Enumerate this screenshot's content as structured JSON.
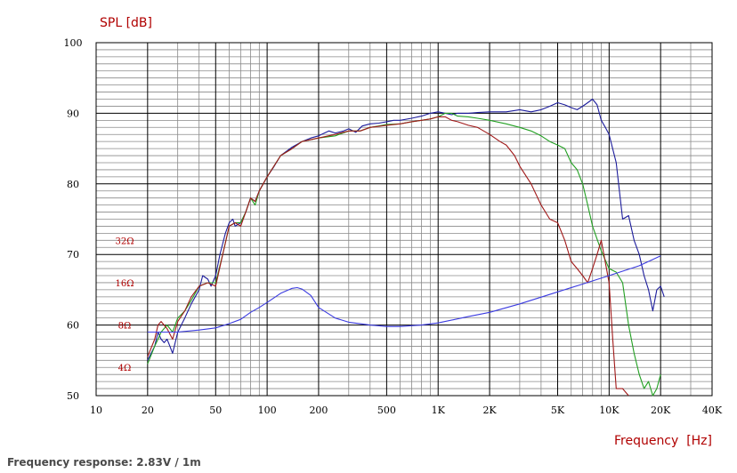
{
  "caption": "Frequency response: 2.83V / 1m",
  "chart_data": {
    "type": "line",
    "xscale": "log",
    "ylabel": "SPL [dB]",
    "xlabel": "Frequency  [Hz]",
    "xlim": [
      10,
      40000
    ],
    "ylim": [
      50,
      100
    ],
    "x_tick_values": [
      10,
      20,
      50,
      100,
      200,
      500,
      1000,
      2000,
      5000,
      10000,
      20000,
      40000
    ],
    "x_tick_labels": [
      "10",
      "20",
      "50",
      "100",
      "200",
      "500",
      "1K",
      "2K",
      "5K",
      "10K",
      "20K",
      "40K"
    ],
    "y_tick_values": [
      50,
      60,
      70,
      80,
      90,
      100
    ],
    "y_tick_labels": [
      "50",
      "60",
      "70",
      "80",
      "90",
      "100"
    ],
    "impedance_markers": [
      {
        "label": "32Ω",
        "y": 72
      },
      {
        "label": "16Ω",
        "y": 66
      },
      {
        "label": "8Ω",
        "y": 60
      },
      {
        "label": "4Ω",
        "y": 54
      }
    ],
    "grid": true,
    "series": [
      {
        "color": "#1c1c9c",
        "points": [
          [
            20,
            55
          ],
          [
            22,
            57
          ],
          [
            23,
            59
          ],
          [
            24,
            58
          ],
          [
            25,
            57.5
          ],
          [
            26,
            58
          ],
          [
            27,
            57
          ],
          [
            28,
            56
          ],
          [
            30,
            59
          ],
          [
            33,
            61
          ],
          [
            36,
            63
          ],
          [
            40,
            65
          ],
          [
            42,
            67
          ],
          [
            45,
            66.5
          ],
          [
            47,
            65.5
          ],
          [
            50,
            67
          ],
          [
            53,
            70
          ],
          [
            57,
            73
          ],
          [
            60,
            74.5
          ],
          [
            63,
            75
          ],
          [
            65,
            74
          ],
          [
            70,
            74.5
          ],
          [
            75,
            76
          ],
          [
            80,
            78
          ],
          [
            85,
            77.5
          ],
          [
            90,
            79
          ],
          [
            100,
            81
          ],
          [
            110,
            82.5
          ],
          [
            120,
            84
          ],
          [
            140,
            85.2
          ],
          [
            160,
            86
          ],
          [
            180,
            86.5
          ],
          [
            200,
            86.8
          ],
          [
            230,
            87.5
          ],
          [
            250,
            87.2
          ],
          [
            280,
            87.5
          ],
          [
            300,
            87.8
          ],
          [
            330,
            87.3
          ],
          [
            360,
            88.2
          ],
          [
            400,
            88.5
          ],
          [
            450,
            88.6
          ],
          [
            500,
            88.8
          ],
          [
            550,
            89
          ],
          [
            600,
            89
          ],
          [
            700,
            89.3
          ],
          [
            800,
            89.6
          ],
          [
            900,
            90
          ],
          [
            1000,
            90.2
          ],
          [
            1100,
            90
          ],
          [
            1200,
            89.8
          ],
          [
            1300,
            90
          ],
          [
            1500,
            90
          ],
          [
            1700,
            90.1
          ],
          [
            2000,
            90.2
          ],
          [
            2500,
            90.2
          ],
          [
            3000,
            90.5
          ],
          [
            3500,
            90.2
          ],
          [
            4000,
            90.5
          ],
          [
            4500,
            91
          ],
          [
            5000,
            91.5
          ],
          [
            5500,
            91.2
          ],
          [
            6000,
            90.8
          ],
          [
            6500,
            90.5
          ],
          [
            7000,
            91
          ],
          [
            7500,
            91.5
          ],
          [
            8000,
            92
          ],
          [
            8500,
            91.2
          ],
          [
            9000,
            89
          ],
          [
            9500,
            88
          ],
          [
            10000,
            87
          ],
          [
            11000,
            83
          ],
          [
            12000,
            75
          ],
          [
            13000,
            75.5
          ],
          [
            14000,
            72
          ],
          [
            15000,
            70
          ],
          [
            16000,
            67
          ],
          [
            17000,
            65
          ],
          [
            18000,
            62
          ],
          [
            19000,
            65
          ],
          [
            20000,
            65.5
          ],
          [
            21000,
            64
          ]
        ]
      },
      {
        "color": "#22a022",
        "points": [
          [
            20,
            54.5
          ],
          [
            22,
            57
          ],
          [
            23,
            58
          ],
          [
            24,
            59
          ],
          [
            26,
            60
          ],
          [
            28,
            59
          ],
          [
            30,
            61
          ],
          [
            33,
            62
          ],
          [
            36,
            63.5
          ],
          [
            40,
            65.5
          ],
          [
            45,
            66
          ],
          [
            50,
            66
          ],
          [
            55,
            70
          ],
          [
            60,
            74
          ],
          [
            65,
            74.5
          ],
          [
            70,
            74.5
          ],
          [
            75,
            76
          ],
          [
            80,
            78
          ],
          [
            85,
            77
          ],
          [
            90,
            79
          ],
          [
            100,
            81
          ],
          [
            120,
            84
          ],
          [
            140,
            85
          ],
          [
            160,
            86
          ],
          [
            200,
            86.5
          ],
          [
            250,
            86.8
          ],
          [
            300,
            87.5
          ],
          [
            350,
            87.5
          ],
          [
            400,
            88
          ],
          [
            450,
            88.2
          ],
          [
            500,
            88.4
          ],
          [
            600,
            88.5
          ],
          [
            700,
            88.8
          ],
          [
            800,
            89
          ],
          [
            900,
            89.2
          ],
          [
            1000,
            89.5
          ],
          [
            1100,
            90
          ],
          [
            1200,
            90
          ],
          [
            1300,
            89.6
          ],
          [
            1500,
            89.5
          ],
          [
            1700,
            89.3
          ],
          [
            2000,
            89
          ],
          [
            2500,
            88.5
          ],
          [
            3000,
            88
          ],
          [
            3500,
            87.5
          ],
          [
            4000,
            86.8
          ],
          [
            4500,
            86
          ],
          [
            5000,
            85.5
          ],
          [
            5500,
            85
          ],
          [
            6000,
            83
          ],
          [
            6500,
            82
          ],
          [
            7000,
            80
          ],
          [
            7500,
            77
          ],
          [
            8000,
            74
          ],
          [
            9000,
            70.5
          ],
          [
            10000,
            68
          ],
          [
            11000,
            67.5
          ],
          [
            12000,
            66
          ],
          [
            13000,
            60
          ],
          [
            14000,
            56
          ],
          [
            15000,
            53
          ],
          [
            16000,
            51
          ],
          [
            17000,
            52
          ],
          [
            18000,
            50
          ],
          [
            19000,
            51
          ],
          [
            20000,
            53
          ]
        ]
      },
      {
        "color": "#a01818",
        "points": [
          [
            20,
            55.5
          ],
          [
            22,
            58
          ],
          [
            23,
            60
          ],
          [
            24,
            60.5
          ],
          [
            26,
            59.5
          ],
          [
            28,
            58
          ],
          [
            30,
            60.5
          ],
          [
            33,
            62
          ],
          [
            36,
            64
          ],
          [
            40,
            65.5
          ],
          [
            45,
            66
          ],
          [
            50,
            65.5
          ],
          [
            55,
            70
          ],
          [
            60,
            74
          ],
          [
            65,
            74.5
          ],
          [
            70,
            74
          ],
          [
            75,
            76
          ],
          [
            80,
            78
          ],
          [
            85,
            77.5
          ],
          [
            90,
            79
          ],
          [
            100,
            81
          ],
          [
            120,
            84
          ],
          [
            140,
            85
          ],
          [
            160,
            86
          ],
          [
            200,
            86.5
          ],
          [
            250,
            87
          ],
          [
            300,
            87.5
          ],
          [
            350,
            87.5
          ],
          [
            400,
            88
          ],
          [
            500,
            88.3
          ],
          [
            600,
            88.5
          ],
          [
            700,
            88.8
          ],
          [
            800,
            89
          ],
          [
            900,
            89.2
          ],
          [
            1000,
            89.5
          ],
          [
            1100,
            89.5
          ],
          [
            1200,
            89
          ],
          [
            1300,
            88.8
          ],
          [
            1500,
            88.3
          ],
          [
            1700,
            88
          ],
          [
            2000,
            87
          ],
          [
            2300,
            86
          ],
          [
            2500,
            85.5
          ],
          [
            2800,
            84
          ],
          [
            3000,
            82.5
          ],
          [
            3500,
            80
          ],
          [
            4000,
            77
          ],
          [
            4500,
            75
          ],
          [
            5000,
            74.5
          ],
          [
            5500,
            72
          ],
          [
            6000,
            69
          ],
          [
            6500,
            68
          ],
          [
            7000,
            67
          ],
          [
            7500,
            66
          ],
          [
            8000,
            68
          ],
          [
            8500,
            70
          ],
          [
            9000,
            72
          ],
          [
            10000,
            66
          ],
          [
            10500,
            58
          ],
          [
            11000,
            51
          ],
          [
            12000,
            51
          ],
          [
            13000,
            50
          ]
        ]
      },
      {
        "color": "#3a3ae0",
        "points": [
          [
            20,
            59
          ],
          [
            30,
            59
          ],
          [
            40,
            59.3
          ],
          [
            50,
            59.6
          ],
          [
            60,
            60.2
          ],
          [
            70,
            60.8
          ],
          [
            80,
            61.8
          ],
          [
            90,
            62.5
          ],
          [
            100,
            63.2
          ],
          [
            120,
            64.5
          ],
          [
            140,
            65.2
          ],
          [
            150,
            65.3
          ],
          [
            160,
            65.1
          ],
          [
            180,
            64.2
          ],
          [
            200,
            62.5
          ],
          [
            250,
            61
          ],
          [
            300,
            60.4
          ],
          [
            400,
            60
          ],
          [
            500,
            59.8
          ],
          [
            600,
            59.8
          ],
          [
            800,
            60
          ],
          [
            1000,
            60.3
          ],
          [
            1500,
            61.2
          ],
          [
            2000,
            61.8
          ],
          [
            3000,
            63
          ],
          [
            5000,
            64.7
          ],
          [
            7000,
            65.8
          ],
          [
            10000,
            67
          ],
          [
            15000,
            68.4
          ],
          [
            20000,
            69.8
          ]
        ]
      }
    ]
  }
}
